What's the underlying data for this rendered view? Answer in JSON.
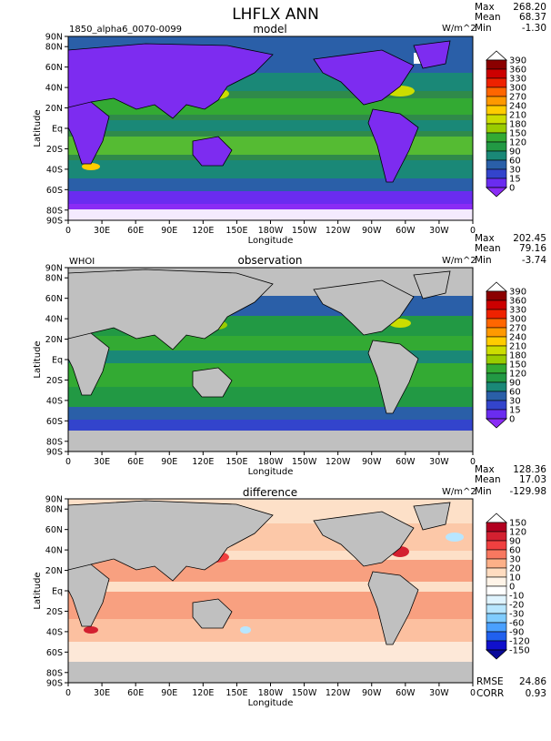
{
  "figure": {
    "title": "LHFLX ANN",
    "case_label": "1850_alpha6_0070-0099",
    "obs_label": "WHOI"
  },
  "chart_data": [
    {
      "type": "heatmap",
      "title": "model",
      "units": "W/m^2",
      "xlabel": "Longitude",
      "ylabel": "Latitude",
      "xticks": [
        "0",
        "30E",
        "60E",
        "90E",
        "120E",
        "150E",
        "180W",
        "150W",
        "120W",
        "90W",
        "60W",
        "30W",
        "0"
      ],
      "yticks": [
        "90N",
        "80N",
        "60N",
        "40N",
        "20N",
        "Eq",
        "20S",
        "40S",
        "60S",
        "80S",
        "90S"
      ],
      "xlim": [
        0,
        360
      ],
      "ylim": [
        -90,
        90
      ],
      "stats": {
        "max_label": "Max",
        "max": "268.20",
        "mean_label": "Mean",
        "mean": "68.37",
        "min_label": "Min",
        "min": "-1.30"
      },
      "colorbar_levels": [
        "390",
        "360",
        "330",
        "300",
        "270",
        "240",
        "210",
        "180",
        "150",
        "120",
        "90",
        "60",
        "30",
        "15",
        "0"
      ],
      "colorbar_colors": [
        "#ffffff",
        "#8b0000",
        "#cc0000",
        "#ee2200",
        "#ff6600",
        "#ff9900",
        "#ffcc00",
        "#ccdd00",
        "#99cc00",
        "#33aa33",
        "#229944",
        "#1a8877",
        "#2a5fa8",
        "#3344cc",
        "#6a2cf0",
        "#8a2cf5"
      ],
      "land_color": "#a0a0a0"
    },
    {
      "type": "heatmap",
      "title": "observation",
      "units": "W/m^2",
      "xlabel": "Longitude",
      "ylabel": "Latitude",
      "xticks": [
        "0",
        "30E",
        "60E",
        "90E",
        "120E",
        "150E",
        "180W",
        "150W",
        "120W",
        "90W",
        "60W",
        "30W",
        "0"
      ],
      "yticks": [
        "90N",
        "80N",
        "60N",
        "40N",
        "20N",
        "Eq",
        "20S",
        "40S",
        "60S",
        "80S",
        "90S"
      ],
      "xlim": [
        0,
        360
      ],
      "ylim": [
        -90,
        90
      ],
      "stats": {
        "max_label": "Max",
        "max": "202.45",
        "mean_label": "Mean",
        "mean": "79.16",
        "min_label": "Min",
        "min": "-3.74"
      },
      "colorbar_levels": [
        "390",
        "360",
        "330",
        "300",
        "270",
        "240",
        "210",
        "180",
        "150",
        "120",
        "90",
        "60",
        "30",
        "15",
        "0"
      ],
      "colorbar_colors": [
        "#ffffff",
        "#8b0000",
        "#cc0000",
        "#ee2200",
        "#ff6600",
        "#ff9900",
        "#ffcc00",
        "#ccdd00",
        "#99cc00",
        "#33aa33",
        "#229944",
        "#1a8877",
        "#2a5fa8",
        "#3344cc",
        "#6a2cf0",
        "#8a2cf5"
      ],
      "land_color": "#c0c0c0"
    },
    {
      "type": "heatmap",
      "title": "difference",
      "units": "W/m^2",
      "xlabel": "Longitude",
      "ylabel": "Latitude",
      "xticks": [
        "0",
        "30E",
        "60E",
        "90E",
        "120E",
        "150E",
        "180W",
        "150W",
        "120W",
        "90W",
        "60W",
        "30W",
        "0"
      ],
      "yticks": [
        "90N",
        "80N",
        "60N",
        "40N",
        "20N",
        "Eq",
        "20S",
        "40S",
        "60S",
        "80S",
        "90S"
      ],
      "xlim": [
        0,
        360
      ],
      "ylim": [
        -90,
        90
      ],
      "stats": {
        "max_label": "Max",
        "max": "128.36",
        "mean_label": "Mean",
        "mean": "17.03",
        "min_label": "Min",
        "min": "-129.98"
      },
      "rmse_label": "RMSE",
      "rmse": "24.86",
      "corr_label": "CORR",
      "corr": "0.93",
      "colorbar_levels": [
        "150",
        "120",
        "90",
        "60",
        "30",
        "20",
        "10",
        "0",
        "-10",
        "-20",
        "-30",
        "-60",
        "-90",
        "-120",
        "-150"
      ],
      "colorbar_colors": [
        "#ffffff",
        "#b20020",
        "#d32030",
        "#f04040",
        "#f87860",
        "#fcb088",
        "#ffdcc0",
        "#fff4e8",
        "#ffffff",
        "#e0f4ff",
        "#b8e6ff",
        "#80ccff",
        "#4aa0ff",
        "#2060ee",
        "#1010cc",
        "#0a0a99"
      ],
      "land_color": "#c0c0c0"
    }
  ]
}
